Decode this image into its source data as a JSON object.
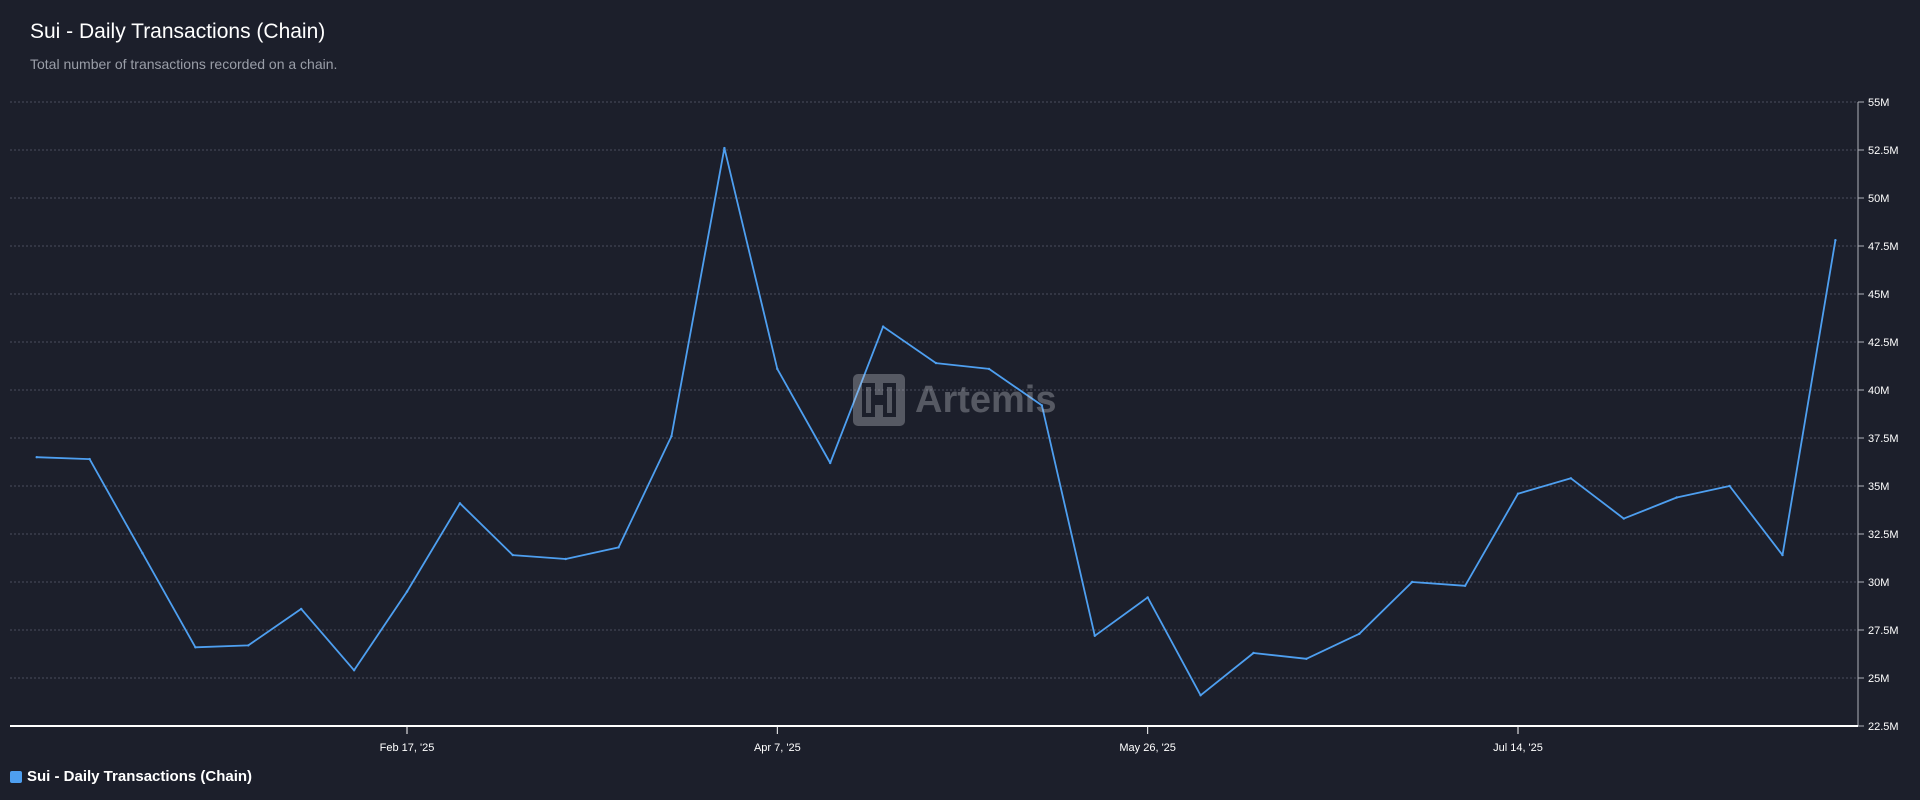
{
  "header": {
    "title": "Sui - Daily Transactions (Chain)",
    "subtitle": "Total number of transactions recorded on a chain."
  },
  "watermark": {
    "text": "Artemis",
    "icon": "artemis-logo-icon"
  },
  "colors": {
    "background": "#1c1f2b",
    "series": "#4e9ff0",
    "grid": "#4a4e5c",
    "axis": "#ffffff"
  },
  "legend": {
    "position": "bottom-left",
    "items": [
      {
        "label": "Sui - Daily Transactions (Chain)",
        "color": "#4e9ff0"
      }
    ]
  },
  "chart_data": {
    "type": "line",
    "title": "Sui - Daily Transactions (Chain)",
    "subtitle": "Total number of transactions recorded on a chain.",
    "xlabel": "",
    "ylabel": "",
    "x_axis_type": "date",
    "x_tick_labels": [
      "Feb 17, '25",
      "Apr 7, '25",
      "May 26, '25",
      "Jul 14, '25"
    ],
    "x_tick_dates": [
      "2025-02-17",
      "2025-04-07",
      "2025-05-26",
      "2025-07-14"
    ],
    "y_axis_position": "right",
    "y_tick_labels": [
      "22.5M",
      "25M",
      "27.5M",
      "30M",
      "32.5M",
      "35M",
      "37.5M",
      "40M",
      "42.5M",
      "45M",
      "47.5M",
      "50M",
      "52.5M",
      "55M"
    ],
    "y_ticks": [
      22.5,
      25,
      27.5,
      30,
      32.5,
      35,
      37.5,
      40,
      42.5,
      45,
      47.5,
      50,
      52.5,
      55
    ],
    "ylim": [
      22.5,
      55
    ],
    "y_unit": "M",
    "grid": true,
    "grid_style": "dashed-horizontal",
    "series": [
      {
        "name": "Sui - Daily Transactions (Chain)",
        "color": "#4e9ff0",
        "x": [
          "2024-12-30",
          "2025-01-06",
          "2025-01-13",
          "2025-01-20",
          "2025-01-27",
          "2025-02-03",
          "2025-02-10",
          "2025-02-17",
          "2025-02-24",
          "2025-03-03",
          "2025-03-10",
          "2025-03-17",
          "2025-03-24",
          "2025-03-31",
          "2025-04-07",
          "2025-04-14",
          "2025-04-21",
          "2025-04-28",
          "2025-05-05",
          "2025-05-12",
          "2025-05-19",
          "2025-05-26",
          "2025-06-02",
          "2025-06-09",
          "2025-06-16",
          "2025-06-23",
          "2025-06-30",
          "2025-07-07",
          "2025-07-14",
          "2025-07-21",
          "2025-07-28",
          "2025-08-04",
          "2025-08-11",
          "2025-08-18",
          "2025-08-25"
        ],
        "values": [
          36.5,
          36.4,
          31.5,
          26.6,
          26.7,
          28.6,
          25.4,
          29.5,
          34.1,
          31.4,
          31.2,
          31.8,
          37.6,
          52.6,
          41.1,
          36.2,
          43.3,
          41.4,
          41.1,
          39.2,
          27.2,
          29.2,
          24.1,
          26.3,
          26.0,
          27.3,
          30.0,
          29.8,
          34.6,
          35.4,
          33.3,
          34.4,
          35.0,
          31.4,
          47.8
        ]
      }
    ]
  }
}
